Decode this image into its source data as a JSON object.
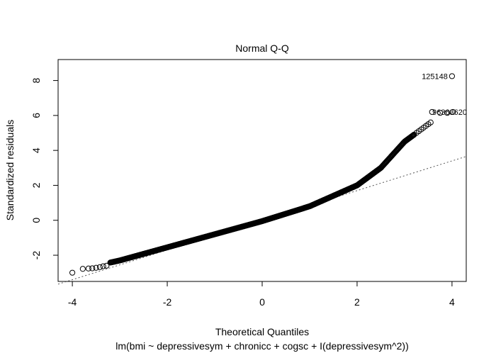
{
  "chart_data": {
    "type": "scatter",
    "title": "Normal Q-Q",
    "xlabel": "Theoretical Quantiles",
    "ylabel": "Standardized residuals",
    "subtitle": "lm(bmi ~ depressivesym + chronicc + cogsc + I(depressivesym^2))",
    "xlim": [
      -4.3,
      4.3
    ],
    "ylim": [
      -3.5,
      9.2
    ],
    "xticks": [
      -4,
      -2,
      0,
      2,
      4
    ],
    "yticks": [
      -2,
      0,
      2,
      4,
      6,
      8
    ],
    "grid": false,
    "reference_line": {
      "style": "dotted",
      "intercept": 0.0,
      "slope": 0.85
    },
    "points_description": "Quantiles of standardized residuals vs theoretical normal quantiles; dense curve, right tail bends upward strongly",
    "curve_key_points": [
      {
        "x": -4.0,
        "y": -3.0
      },
      {
        "x": -3.8,
        "y": -2.78
      },
      {
        "x": -3.0,
        "y": -2.3
      },
      {
        "x": -2.0,
        "y": -1.55
      },
      {
        "x": -1.0,
        "y": -0.8
      },
      {
        "x": 0.0,
        "y": -0.05
      },
      {
        "x": 1.0,
        "y": 0.8
      },
      {
        "x": 2.0,
        "y": 2.0
      },
      {
        "x": 2.5,
        "y": 3.0
      },
      {
        "x": 3.0,
        "y": 4.5
      },
      {
        "x": 3.4,
        "y": 5.3
      },
      {
        "x": 3.55,
        "y": 5.6
      }
    ],
    "outliers": [
      {
        "x": 3.58,
        "y": 6.2,
        "label": ""
      },
      {
        "x": 3.75,
        "y": 6.15,
        "label": ""
      },
      {
        "x": 3.9,
        "y": 6.15,
        "label": ""
      },
      {
        "x": 4.02,
        "y": 6.2,
        "label": ""
      },
      {
        "x": 4.0,
        "y": 8.25,
        "label": "125148"
      }
    ],
    "overlap_label": {
      "x": 3.95,
      "y": 6.2,
      "text": "96363620"
    }
  }
}
